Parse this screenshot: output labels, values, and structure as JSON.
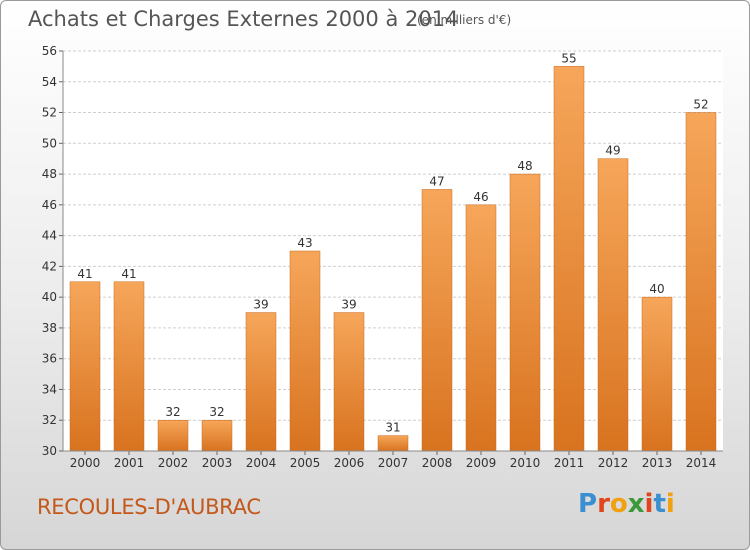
{
  "title": "Achats et Charges Externes 2000 à 2014",
  "unit_note": "(en milliers d'€)",
  "commune": "RECOULES-D'AUBRAC",
  "logo": {
    "text": "Proxiti",
    "letters": [
      {
        "ch": "P",
        "color": "#3a8fd0"
      },
      {
        "ch": "r",
        "color": "#e0451d"
      },
      {
        "ch": "o",
        "color": "#f0a010"
      },
      {
        "ch": "x",
        "color": "#3a9a3a"
      },
      {
        "ch": "i",
        "color": "#e0451d"
      },
      {
        "ch": "t",
        "color": "#3a8fd0"
      },
      {
        "ch": "i",
        "color": "#f0a010"
      }
    ]
  },
  "colors": {
    "bar_top": "#f6a65a",
    "bar_bottom": "#d8731f",
    "bar_stroke": "#c86a1c",
    "grid": "#cfcfcf",
    "axis_text": "#333333"
  },
  "chart_data": {
    "type": "bar",
    "categories": [
      "2000",
      "2001",
      "2002",
      "2003",
      "2004",
      "2005",
      "2006",
      "2007",
      "2008",
      "2009",
      "2010",
      "2011",
      "2012",
      "2013",
      "2014"
    ],
    "values": [
      41,
      41,
      32,
      32,
      39,
      43,
      39,
      31,
      47,
      46,
      48,
      55,
      49,
      40,
      52
    ],
    "title": "Achats et Charges Externes 2000 à 2014",
    "xlabel": "",
    "ylabel": "",
    "ylim": [
      30,
      56
    ],
    "yticks": [
      30,
      32,
      34,
      36,
      38,
      40,
      42,
      44,
      46,
      48,
      50,
      52,
      54,
      56
    ],
    "grid": true,
    "data_labels": true
  }
}
